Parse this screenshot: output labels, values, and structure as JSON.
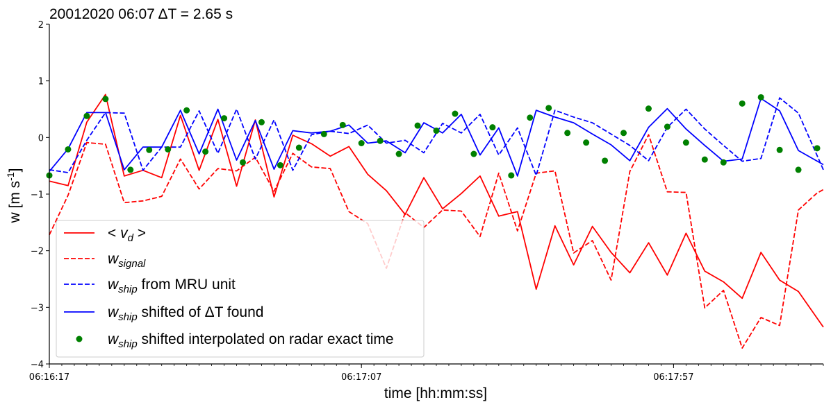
{
  "chart_data": {
    "type": "line",
    "title": "20012020 06:07 ΔT = 2.65 s",
    "xlabel": "time [hh:mm:ss]",
    "ylabel": "w [m s-1]",
    "ylabel_parts": {
      "base": "w [m s",
      "sup": "-1",
      "end": "]"
    },
    "xlim": [
      0,
      124
    ],
    "ylim": [
      -4,
      2
    ],
    "yticks": [
      -4,
      -3,
      -2,
      -1,
      0,
      1,
      2
    ],
    "xticks": [
      {
        "value": 0,
        "label": "06:16:17"
      },
      {
        "value": 50,
        "label": "06:17:07"
      },
      {
        "value": 100,
        "label": "06:17:57"
      }
    ],
    "minor_tick_step": 2,
    "legend_placement": "lower-left",
    "series": [
      {
        "name": "< v_d >",
        "legend": {
          "pre": "< ",
          "main": "v",
          "sub": "d",
          "post": " >"
        },
        "color": "#ff0000",
        "style": "solid",
        "x": [
          0,
          3,
          6,
          9,
          12,
          15,
          18,
          21,
          24,
          27,
          30,
          33,
          36,
          39,
          42,
          45,
          48,
          51,
          54,
          57,
          60,
          63,
          66,
          69,
          72,
          75,
          78,
          81,
          84,
          87,
          90,
          93,
          96,
          99,
          102,
          105,
          108,
          111,
          114,
          117,
          120,
          124
        ],
        "y": [
          -0.77,
          -0.85,
          0.27,
          0.76,
          -0.68,
          -0.58,
          -0.71,
          0.39,
          -0.58,
          0.32,
          -0.86,
          0.31,
          -1.05,
          0.04,
          -0.11,
          -0.33,
          -0.16,
          -0.65,
          -0.94,
          -1.36,
          -0.71,
          -1.26,
          -0.99,
          -0.68,
          -1.39,
          -1.31,
          -2.68,
          -1.56,
          -2.25,
          -1.57,
          -2.03,
          -2.39,
          -1.86,
          -2.43,
          -1.69,
          -2.36,
          -2.55,
          -2.84,
          -2.03,
          -2.52,
          -2.72,
          -3.35
        ]
      },
      {
        "name": "w_signal",
        "legend": {
          "pre": "",
          "main": "w",
          "sub": "signal",
          "post": ""
        },
        "color": "#ff0000",
        "style": "dashed",
        "x": [
          0,
          3,
          6,
          9,
          12,
          15,
          18,
          21,
          24,
          27,
          30,
          33,
          36,
          39,
          42,
          45,
          48,
          51,
          54,
          57,
          60,
          63,
          66,
          69,
          72,
          75,
          78,
          81,
          84,
          87,
          90,
          93,
          96,
          99,
          102,
          105,
          108,
          111,
          114,
          117,
          120,
          123,
          124
        ],
        "y": [
          -1.72,
          -1.02,
          -0.09,
          -0.12,
          -1.15,
          -1.12,
          -1.04,
          -0.38,
          -0.91,
          -0.55,
          -0.59,
          -0.35,
          -0.95,
          -0.28,
          -0.52,
          -0.55,
          -1.31,
          -1.52,
          -2.31,
          -1.33,
          -1.59,
          -1.28,
          -1.3,
          -1.75,
          -0.63,
          -1.65,
          -0.63,
          -0.59,
          -2.04,
          -1.82,
          -2.52,
          -0.6,
          0.05,
          -0.96,
          -0.97,
          -3.01,
          -2.7,
          -3.72,
          -3.18,
          -3.32,
          -1.28,
          -0.98,
          -0.92
        ]
      },
      {
        "name": "w_ship from MRU unit",
        "legend": {
          "pre": "",
          "main": "w",
          "sub": "ship",
          "post": " from MRU unit"
        },
        "color": "#0000ff",
        "style": "dashed",
        "x": [
          0,
          3,
          6,
          9,
          12,
          15,
          18,
          21,
          24,
          27,
          30,
          33,
          36,
          39,
          42,
          45,
          48,
          51,
          54,
          57,
          60,
          63,
          66,
          69,
          72,
          75,
          78,
          81,
          84,
          87,
          90,
          93,
          96,
          99,
          102,
          105,
          108,
          111,
          114,
          117,
          120,
          124
        ],
        "y": [
          -0.57,
          -0.62,
          -0.05,
          0.44,
          0.43,
          -0.58,
          -0.17,
          -0.17,
          0.47,
          -0.28,
          0.5,
          -0.38,
          0.31,
          -0.58,
          0.05,
          0.11,
          0.07,
          0.22,
          -0.1,
          -0.05,
          -0.27,
          0.25,
          0.08,
          0.41,
          -0.31,
          0.17,
          -0.67,
          0.48,
          0.36,
          0.26,
          0.06,
          -0.14,
          -0.41,
          0.18,
          0.5,
          0.15,
          -0.14,
          -0.42,
          -0.37,
          0.7,
          0.43,
          -0.57
        ]
      },
      {
        "name": "w_ship shifted of ΔT found",
        "legend": {
          "pre": "",
          "main": "w",
          "sub": "ship",
          "post": " shifted of ΔT found"
        },
        "color": "#0000ff",
        "style": "solid",
        "x": [
          0,
          3,
          6,
          9,
          12,
          15,
          18,
          21,
          24,
          27,
          30,
          33,
          36,
          39,
          42,
          45,
          48,
          51,
          54,
          57,
          60,
          63,
          66,
          69,
          72,
          75,
          78,
          81,
          84,
          87,
          90,
          93,
          96,
          99,
          102,
          105,
          108,
          111,
          114,
          117,
          120,
          124
        ],
        "y": [
          -0.6,
          -0.2,
          0.44,
          0.44,
          -0.57,
          -0.17,
          -0.17,
          0.48,
          -0.29,
          0.5,
          -0.4,
          0.3,
          -0.56,
          0.12,
          0.08,
          0.11,
          0.22,
          -0.1,
          -0.06,
          -0.27,
          0.26,
          0.08,
          0.41,
          -0.31,
          0.17,
          -0.68,
          0.48,
          0.36,
          0.26,
          0.06,
          -0.13,
          -0.41,
          0.18,
          0.51,
          0.15,
          -0.14,
          -0.42,
          -0.38,
          0.69,
          0.47,
          -0.23,
          -0.48
        ]
      },
      {
        "name": "w_ship shifted interpolated on radar exact time",
        "legend": {
          "pre": "",
          "main": "w",
          "sub": "ship",
          "post": " shifted interpolated on radar exact time"
        },
        "color": "#008000",
        "style": "markers",
        "x": [
          0,
          3,
          6,
          9,
          13,
          16,
          19,
          22,
          25,
          28,
          31,
          34,
          37,
          40,
          44,
          47,
          50,
          53,
          56,
          59,
          62,
          65,
          68,
          71,
          74,
          77,
          80,
          83,
          86,
          89,
          92,
          96,
          99,
          102,
          105,
          108,
          111,
          114,
          117,
          120,
          123
        ],
        "y": [
          -0.67,
          -0.21,
          0.38,
          0.68,
          -0.57,
          -0.22,
          -0.21,
          0.48,
          -0.25,
          0.34,
          -0.44,
          0.27,
          -0.49,
          -0.18,
          0.06,
          0.22,
          -0.1,
          -0.06,
          -0.29,
          0.21,
          0.12,
          0.42,
          -0.29,
          0.18,
          -0.67,
          0.35,
          0.52,
          0.08,
          -0.09,
          -0.41,
          0.08,
          0.51,
          0.19,
          -0.09,
          -0.39,
          -0.44,
          0.6,
          0.71,
          -0.22,
          -0.57,
          -0.19
        ]
      }
    ]
  }
}
